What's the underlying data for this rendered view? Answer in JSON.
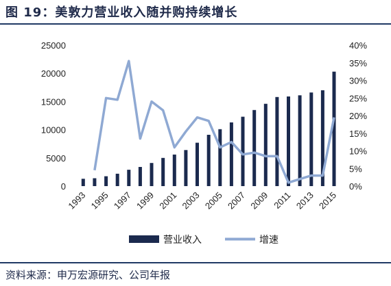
{
  "figure": {
    "title": "图 19：美敦力营业收入随并购持续增长",
    "source": "资料来源：申万宏源研究、公司年报"
  },
  "colors": {
    "bar": "#1b2a4e",
    "line": "#8fa9d3",
    "rule": "#1f3864"
  },
  "chart_data": {
    "type": "bar",
    "title": "",
    "categories": [
      "1993",
      "1994",
      "1995",
      "1996",
      "1997",
      "1998",
      "1999",
      "2000",
      "2001",
      "2002",
      "2003",
      "2004",
      "2005",
      "2006",
      "2007",
      "2008",
      "2009",
      "2010",
      "2011",
      "2012",
      "2013",
      "2014",
      "2015"
    ],
    "x_tick_labels": [
      "1993",
      "1995",
      "1997",
      "1999",
      "2001",
      "2003",
      "2005",
      "2007",
      "2009",
      "2011",
      "2013",
      "2015"
    ],
    "series": [
      {
        "name": "营业收入",
        "type": "bar",
        "axis": "left",
        "values": [
          1300,
          1400,
          1750,
          2200,
          2900,
          3400,
          4100,
          5000,
          5600,
          6400,
          7700,
          9100,
          10100,
          11300,
          12300,
          13500,
          14600,
          15800,
          15900,
          16100,
          16600,
          17000,
          20300
        ]
      },
      {
        "name": "增速",
        "type": "line",
        "axis": "right",
        "values": [
          null,
          0.045,
          0.25,
          0.245,
          0.355,
          0.135,
          0.24,
          0.215,
          0.11,
          0.155,
          0.195,
          0.185,
          0.11,
          0.125,
          0.09,
          0.095,
          0.085,
          0.085,
          0.01,
          0.02,
          0.03,
          0.03,
          0.195
        ]
      }
    ],
    "y_left": {
      "min": 0,
      "max": 25000,
      "ticks": [
        "0",
        "5000",
        "10000",
        "15000",
        "20000",
        "25000"
      ]
    },
    "y_right": {
      "min": 0,
      "max": 0.4,
      "ticks": [
        "0%",
        "5%",
        "10%",
        "15%",
        "20%",
        "25%",
        "30%",
        "35%",
        "40%"
      ]
    },
    "legend_position": "bottom-center",
    "grid": false
  }
}
